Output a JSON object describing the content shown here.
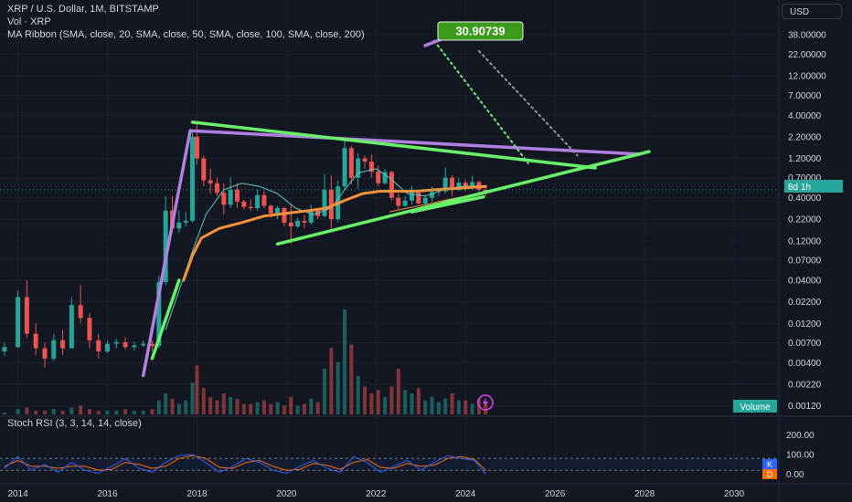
{
  "header": {
    "symbol_line": "XRP / U.S. Dollar, 1M, BITSTAMP",
    "volume_line": "Vol · XRP",
    "ma_line": "MA Ribbon (SMA, close, 20, SMA, close, 50, SMA, close, 100, SMA, close, 200)"
  },
  "currency_button": "USD",
  "target_label": "30.90739",
  "price_axis_labels": [
    "38.00000",
    "22.00000",
    "12.00000",
    "7.00000",
    "4.00000",
    "2.20000",
    "1.20000",
    "0.70000",
    "0.40000",
    "0.22000",
    "0.12000",
    "0.07000",
    "0.04000",
    "0.02200",
    "0.01200",
    "0.00700",
    "0.00400",
    "0.00220",
    "0.00120"
  ],
  "price_tag": "8d 1h",
  "volume_tag": "Volume",
  "stoch": {
    "title": "Stoch RSI (3, 3, 14, 14, close)",
    "axis_labels": [
      "200.00",
      "100.00",
      "0.00"
    ],
    "k_tag": "K",
    "d_tag": "D"
  },
  "time_axis_labels": [
    "2014",
    "2016",
    "2018",
    "2020",
    "2022",
    "2024",
    "2026",
    "2028",
    "2030"
  ],
  "colors": {
    "background": "#131722",
    "up": "#26a69a",
    "down": "#ef5350",
    "trend_green": "#69f06b",
    "trend_purple": "#b07fe0",
    "ma20": "#5ec8b8",
    "ma50": "#f5913a",
    "stoch_k": "#2962ff",
    "stoch_d": "#ff6d00",
    "label_bg": "#3c9a1d"
  },
  "chart_data": {
    "type": "candlestick",
    "scale": "log",
    "x_unit": "year",
    "xlim": [
      2013.6,
      2031
    ],
    "ylim": [
      0.0009,
      60
    ],
    "candles": [
      {
        "t": 2013.7,
        "o": 0.0055,
        "h": 0.007,
        "l": 0.0048,
        "c": 0.0062
      },
      {
        "t": 2014.0,
        "o": 0.0062,
        "h": 0.03,
        "l": 0.006,
        "c": 0.025
      },
      {
        "t": 2014.2,
        "o": 0.025,
        "h": 0.04,
        "l": 0.008,
        "c": 0.009
      },
      {
        "t": 2014.4,
        "o": 0.009,
        "h": 0.012,
        "l": 0.005,
        "c": 0.006
      },
      {
        "t": 2014.6,
        "o": 0.006,
        "h": 0.007,
        "l": 0.0035,
        "c": 0.0045
      },
      {
        "t": 2014.8,
        "o": 0.0045,
        "h": 0.009,
        "l": 0.0042,
        "c": 0.0075
      },
      {
        "t": 2015.0,
        "o": 0.0075,
        "h": 0.01,
        "l": 0.005,
        "c": 0.006
      },
      {
        "t": 2015.2,
        "o": 0.006,
        "h": 0.025,
        "l": 0.006,
        "c": 0.02
      },
      {
        "t": 2015.4,
        "o": 0.02,
        "h": 0.035,
        "l": 0.012,
        "c": 0.014
      },
      {
        "t": 2015.6,
        "o": 0.014,
        "h": 0.016,
        "l": 0.006,
        "c": 0.0075
      },
      {
        "t": 2015.8,
        "o": 0.0075,
        "h": 0.009,
        "l": 0.0045,
        "c": 0.0055
      },
      {
        "t": 2016.0,
        "o": 0.0055,
        "h": 0.0075,
        "l": 0.0052,
        "c": 0.0068
      },
      {
        "t": 2016.2,
        "o": 0.0068,
        "h": 0.0078,
        "l": 0.006,
        "c": 0.0071
      },
      {
        "t": 2016.4,
        "o": 0.0071,
        "h": 0.0082,
        "l": 0.0058,
        "c": 0.0062
      },
      {
        "t": 2016.6,
        "o": 0.0062,
        "h": 0.0072,
        "l": 0.0056,
        "c": 0.0065
      },
      {
        "t": 2016.8,
        "o": 0.0065,
        "h": 0.0075,
        "l": 0.0062,
        "c": 0.0068
      },
      {
        "t": 2017.0,
        "o": 0.0068,
        "h": 0.0075,
        "l": 0.0055,
        "c": 0.0064
      },
      {
        "t": 2017.15,
        "o": 0.0064,
        "h": 0.045,
        "l": 0.006,
        "c": 0.038
      },
      {
        "t": 2017.3,
        "o": 0.038,
        "h": 0.42,
        "l": 0.035,
        "c": 0.28
      },
      {
        "t": 2017.45,
        "o": 0.28,
        "h": 0.42,
        "l": 0.15,
        "c": 0.17
      },
      {
        "t": 2017.6,
        "o": 0.17,
        "h": 0.28,
        "l": 0.15,
        "c": 0.2
      },
      {
        "t": 2017.75,
        "o": 0.2,
        "h": 0.27,
        "l": 0.18,
        "c": 0.21
      },
      {
        "t": 2017.9,
        "o": 0.21,
        "h": 2.6,
        "l": 0.2,
        "c": 2.2
      },
      {
        "t": 2018.0,
        "o": 2.2,
        "h": 3.3,
        "l": 1.0,
        "c": 1.2
      },
      {
        "t": 2018.15,
        "o": 1.2,
        "h": 1.3,
        "l": 0.55,
        "c": 0.65
      },
      {
        "t": 2018.3,
        "o": 0.65,
        "h": 0.9,
        "l": 0.45,
        "c": 0.6
      },
      {
        "t": 2018.45,
        "o": 0.6,
        "h": 0.7,
        "l": 0.42,
        "c": 0.46
      },
      {
        "t": 2018.6,
        "o": 0.46,
        "h": 0.6,
        "l": 0.25,
        "c": 0.33
      },
      {
        "t": 2018.75,
        "o": 0.33,
        "h": 0.7,
        "l": 0.3,
        "c": 0.5
      },
      {
        "t": 2018.9,
        "o": 0.5,
        "h": 0.6,
        "l": 0.3,
        "c": 0.36
      },
      {
        "t": 2019.05,
        "o": 0.36,
        "h": 0.38,
        "l": 0.29,
        "c": 0.31
      },
      {
        "t": 2019.2,
        "o": 0.31,
        "h": 0.38,
        "l": 0.28,
        "c": 0.3
      },
      {
        "t": 2019.35,
        "o": 0.3,
        "h": 0.5,
        "l": 0.28,
        "c": 0.43
      },
      {
        "t": 2019.5,
        "o": 0.43,
        "h": 0.48,
        "l": 0.3,
        "c": 0.32
      },
      {
        "t": 2019.65,
        "o": 0.32,
        "h": 0.33,
        "l": 0.23,
        "c": 0.26
      },
      {
        "t": 2019.8,
        "o": 0.26,
        "h": 0.32,
        "l": 0.22,
        "c": 0.3
      },
      {
        "t": 2019.95,
        "o": 0.3,
        "h": 0.31,
        "l": 0.18,
        "c": 0.2
      },
      {
        "t": 2020.1,
        "o": 0.2,
        "h": 0.34,
        "l": 0.11,
        "c": 0.18
      },
      {
        "t": 2020.25,
        "o": 0.18,
        "h": 0.23,
        "l": 0.17,
        "c": 0.21
      },
      {
        "t": 2020.4,
        "o": 0.21,
        "h": 0.25,
        "l": 0.17,
        "c": 0.2
      },
      {
        "t": 2020.55,
        "o": 0.2,
        "h": 0.33,
        "l": 0.19,
        "c": 0.28
      },
      {
        "t": 2020.7,
        "o": 0.28,
        "h": 0.3,
        "l": 0.22,
        "c": 0.24
      },
      {
        "t": 2020.85,
        "o": 0.24,
        "h": 0.78,
        "l": 0.23,
        "c": 0.5
      },
      {
        "t": 2021.0,
        "o": 0.5,
        "h": 0.75,
        "l": 0.17,
        "c": 0.22
      },
      {
        "t": 2021.15,
        "o": 0.22,
        "h": 0.65,
        "l": 0.2,
        "c": 0.55
      },
      {
        "t": 2021.3,
        "o": 0.55,
        "h": 1.96,
        "l": 0.5,
        "c": 1.6
      },
      {
        "t": 2021.45,
        "o": 1.6,
        "h": 1.7,
        "l": 0.58,
        "c": 0.7
      },
      {
        "t": 2021.6,
        "o": 0.7,
        "h": 1.4,
        "l": 0.52,
        "c": 1.2
      },
      {
        "t": 2021.75,
        "o": 1.2,
        "h": 1.3,
        "l": 0.9,
        "c": 1.1
      },
      {
        "t": 2021.9,
        "o": 1.1,
        "h": 1.35,
        "l": 0.7,
        "c": 0.83
      },
      {
        "t": 2022.05,
        "o": 0.83,
        "h": 0.98,
        "l": 0.55,
        "c": 0.6
      },
      {
        "t": 2022.2,
        "o": 0.6,
        "h": 0.9,
        "l": 0.58,
        "c": 0.82
      },
      {
        "t": 2022.35,
        "o": 0.82,
        "h": 0.85,
        "l": 0.37,
        "c": 0.4
      },
      {
        "t": 2022.5,
        "o": 0.4,
        "h": 0.45,
        "l": 0.29,
        "c": 0.32
      },
      {
        "t": 2022.65,
        "o": 0.32,
        "h": 0.42,
        "l": 0.31,
        "c": 0.37
      },
      {
        "t": 2022.8,
        "o": 0.37,
        "h": 0.56,
        "l": 0.33,
        "c": 0.46
      },
      {
        "t": 2022.95,
        "o": 0.46,
        "h": 0.48,
        "l": 0.33,
        "c": 0.34
      },
      {
        "t": 2023.1,
        "o": 0.34,
        "h": 0.43,
        "l": 0.33,
        "c": 0.4
      },
      {
        "t": 2023.25,
        "o": 0.4,
        "h": 0.55,
        "l": 0.36,
        "c": 0.47
      },
      {
        "t": 2023.4,
        "o": 0.47,
        "h": 0.5,
        "l": 0.42,
        "c": 0.48
      },
      {
        "t": 2023.55,
        "o": 0.48,
        "h": 0.93,
        "l": 0.45,
        "c": 0.7
      },
      {
        "t": 2023.7,
        "o": 0.7,
        "h": 0.75,
        "l": 0.42,
        "c": 0.5
      },
      {
        "t": 2023.85,
        "o": 0.5,
        "h": 0.7,
        "l": 0.48,
        "c": 0.61
      },
      {
        "t": 2024.0,
        "o": 0.61,
        "h": 0.66,
        "l": 0.48,
        "c": 0.53
      },
      {
        "t": 2024.15,
        "o": 0.53,
        "h": 0.74,
        "l": 0.5,
        "c": 0.62
      },
      {
        "t": 2024.3,
        "o": 0.62,
        "h": 0.65,
        "l": 0.45,
        "c": 0.5
      },
      {
        "t": 2024.45,
        "o": 0.5,
        "h": 0.55,
        "l": 0.42,
        "c": 0.48
      }
    ],
    "volume": [
      1,
      3,
      4,
      2,
      2,
      3,
      2,
      4,
      5,
      3,
      2,
      2,
      2,
      3,
      2,
      2,
      3,
      8,
      12,
      9,
      6,
      8,
      18,
      28,
      15,
      10,
      8,
      12,
      10,
      9,
      6,
      6,
      7,
      8,
      6,
      7,
      5,
      10,
      5,
      6,
      9,
      7,
      26,
      38,
      30,
      60,
      40,
      22,
      16,
      12,
      14,
      10,
      16,
      26,
      14,
      12,
      15,
      8,
      10,
      7,
      9,
      12,
      8,
      8,
      6,
      9,
      7,
      6
    ],
    "ma20": [
      [
        2017.3,
        0.01
      ],
      [
        2017.6,
        0.03
      ],
      [
        2017.9,
        0.09
      ],
      [
        2018.2,
        0.25
      ],
      [
        2018.6,
        0.5
      ],
      [
        2019.0,
        0.6
      ],
      [
        2019.4,
        0.55
      ],
      [
        2019.8,
        0.45
      ],
      [
        2020.2,
        0.3
      ],
      [
        2020.6,
        0.25
      ],
      [
        2021.0,
        0.3
      ],
      [
        2021.3,
        0.5
      ],
      [
        2021.6,
        0.8
      ],
      [
        2022.0,
        0.9
      ],
      [
        2022.3,
        0.7
      ],
      [
        2022.7,
        0.45
      ],
      [
        2023.1,
        0.42
      ],
      [
        2023.5,
        0.5
      ],
      [
        2023.9,
        0.55
      ],
      [
        2024.45,
        0.56
      ]
    ],
    "ma50": [
      [
        2017.7,
        0.04
      ],
      [
        2017.9,
        0.08
      ],
      [
        2018.1,
        0.13
      ],
      [
        2018.5,
        0.17
      ],
      [
        2019.0,
        0.2
      ],
      [
        2019.5,
        0.24
      ],
      [
        2020.0,
        0.26
      ],
      [
        2020.5,
        0.28
      ],
      [
        2020.9,
        0.3
      ],
      [
        2021.3,
        0.37
      ],
      [
        2021.7,
        0.45
      ],
      [
        2022.1,
        0.48
      ],
      [
        2022.5,
        0.48
      ],
      [
        2022.9,
        0.48
      ],
      [
        2023.3,
        0.5
      ],
      [
        2023.8,
        0.52
      ],
      [
        2024.45,
        0.55
      ]
    ],
    "ma100": [
      [
        2022.3,
        0.27
      ],
      [
        2022.7,
        0.3
      ],
      [
        2023.1,
        0.33
      ],
      [
        2023.5,
        0.37
      ],
      [
        2024.0,
        0.42
      ],
      [
        2024.45,
        0.45
      ]
    ],
    "stoch_k": [
      [
        2013.7,
        30
      ],
      [
        2014.0,
        90
      ],
      [
        2014.3,
        20
      ],
      [
        2014.6,
        50
      ],
      [
        2014.9,
        10
      ],
      [
        2015.2,
        60
      ],
      [
        2015.5,
        20
      ],
      [
        2015.8,
        5
      ],
      [
        2016.1,
        40
      ],
      [
        2016.4,
        80
      ],
      [
        2016.7,
        30
      ],
      [
        2017.0,
        10
      ],
      [
        2017.3,
        60
      ],
      [
        2017.6,
        95
      ],
      [
        2017.9,
        100
      ],
      [
        2018.2,
        60
      ],
      [
        2018.5,
        10
      ],
      [
        2018.8,
        40
      ],
      [
        2019.1,
        80
      ],
      [
        2019.4,
        60
      ],
      [
        2019.7,
        20
      ],
      [
        2020.0,
        5
      ],
      [
        2020.3,
        40
      ],
      [
        2020.6,
        70
      ],
      [
        2020.9,
        30
      ],
      [
        2021.2,
        10
      ],
      [
        2021.5,
        90
      ],
      [
        2021.8,
        60
      ],
      [
        2022.1,
        10
      ],
      [
        2022.4,
        40
      ],
      [
        2022.7,
        70
      ],
      [
        2023.0,
        20
      ],
      [
        2023.3,
        60
      ],
      [
        2023.6,
        95
      ],
      [
        2023.9,
        80
      ],
      [
        2024.2,
        70
      ],
      [
        2024.45,
        0
      ]
    ],
    "stoch_d": [
      [
        2013.7,
        40
      ],
      [
        2014.0,
        70
      ],
      [
        2014.3,
        40
      ],
      [
        2014.6,
        40
      ],
      [
        2014.9,
        30
      ],
      [
        2015.2,
        40
      ],
      [
        2015.5,
        40
      ],
      [
        2015.8,
        20
      ],
      [
        2016.1,
        25
      ],
      [
        2016.4,
        60
      ],
      [
        2016.7,
        50
      ],
      [
        2017.0,
        30
      ],
      [
        2017.3,
        40
      ],
      [
        2017.6,
        80
      ],
      [
        2017.9,
        95
      ],
      [
        2018.2,
        80
      ],
      [
        2018.5,
        35
      ],
      [
        2018.8,
        30
      ],
      [
        2019.1,
        60
      ],
      [
        2019.4,
        70
      ],
      [
        2019.7,
        40
      ],
      [
        2020.0,
        20
      ],
      [
        2020.3,
        25
      ],
      [
        2020.6,
        55
      ],
      [
        2020.9,
        45
      ],
      [
        2021.2,
        25
      ],
      [
        2021.5,
        60
      ],
      [
        2021.8,
        75
      ],
      [
        2022.1,
        35
      ],
      [
        2022.4,
        30
      ],
      [
        2022.7,
        55
      ],
      [
        2023.0,
        40
      ],
      [
        2023.3,
        45
      ],
      [
        2023.6,
        80
      ],
      [
        2023.9,
        90
      ],
      [
        2024.2,
        75
      ],
      [
        2024.45,
        20
      ]
    ],
    "trendlines": [
      {
        "name": "purple-upper",
        "color": "purple",
        "p1": [
          2017.85,
          2.6
        ],
        "p2": [
          2027.9,
          1.35
        ]
      },
      {
        "name": "purple-impulse",
        "color": "purple",
        "p1": [
          2016.8,
          0.0028
        ],
        "p2": [
          2017.85,
          2.6
        ]
      },
      {
        "name": "green-upper",
        "color": "green",
        "p1": [
          2017.9,
          3.3
        ],
        "p2": [
          2026.9,
          0.92
        ]
      },
      {
        "name": "green-lower",
        "color": "green",
        "p1": [
          2019.8,
          0.11
        ],
        "p2": [
          2028.1,
          1.45
        ]
      },
      {
        "name": "green-lower-short",
        "color": "green",
        "p1": [
          2022.8,
          0.27
        ],
        "p2": [
          2024.4,
          0.41
        ]
      },
      {
        "name": "green-impulse",
        "color": "green",
        "p1": [
          2017.0,
          0.0045
        ],
        "p2": [
          2017.6,
          0.04
        ]
      },
      {
        "name": "projection-green",
        "color": "green",
        "dotted": true,
        "p1": [
          2023.3,
          32
        ],
        "p2": [
          2025.4,
          1.05
        ]
      },
      {
        "name": "projection-grey",
        "color": "grey",
        "dotted": true,
        "p1": [
          2024.3,
          24
        ],
        "p2": [
          2026.5,
          1.3
        ]
      },
      {
        "name": "target-marker",
        "color": "purple",
        "p1": [
          2023.1,
          28
        ],
        "p2": [
          2023.5,
          34
        ]
      }
    ],
    "current_price": 0.5
  }
}
